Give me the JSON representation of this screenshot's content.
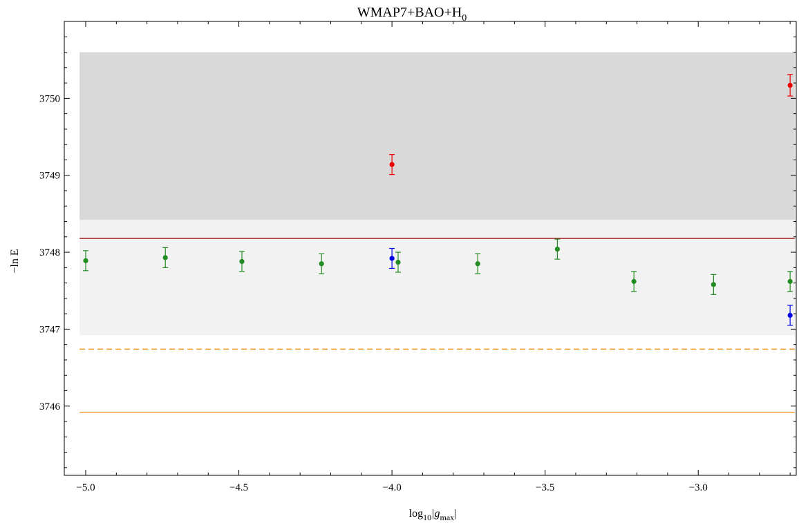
{
  "chart_data": {
    "type": "scatter",
    "title": "WMAP7+BAO+H",
    "title_subscript": "0",
    "xlabel_parts": {
      "main": "log",
      "base": "10",
      "mid": "|g",
      "sub": "max",
      "end": "|"
    },
    "ylabel": "−ln E",
    "xlim": [
      -5.07,
      -2.68
    ],
    "ylim": [
      3745.1,
      3751.0
    ],
    "xticks": [
      {
        "value": -5.0,
        "label": "−5.0"
      },
      {
        "value": -4.5,
        "label": "−4.5"
      },
      {
        "value": -4.0,
        "label": "−4.0"
      },
      {
        "value": -3.5,
        "label": "−3.5"
      },
      {
        "value": -3.0,
        "label": "−3.0"
      }
    ],
    "yticks": [
      {
        "value": 3746,
        "label": "3746"
      },
      {
        "value": 3747,
        "label": "3747"
      },
      {
        "value": 3748,
        "label": "3748"
      },
      {
        "value": 3749,
        "label": "3749"
      },
      {
        "value": 3750,
        "label": "3750"
      }
    ],
    "grid": false,
    "bands": [
      {
        "y": [
          3748.42,
          3750.6
        ],
        "color": "#d9d9d9"
      },
      {
        "y": [
          3746.92,
          3748.42
        ],
        "color": "#f2f2f2"
      }
    ],
    "lines": [
      {
        "y": 3748.18,
        "color": "#a01010",
        "dashed": false
      },
      {
        "y": 3746.74,
        "color": "#f0961e",
        "dashed": true
      },
      {
        "y": 3745.92,
        "color": "#f0961e",
        "dashed": false
      }
    ],
    "series": [
      {
        "color": "#228B22",
        "points": [
          {
            "x": -5.0,
            "y": 3747.89,
            "err": 0.13
          },
          {
            "x": -4.74,
            "y": 3747.93,
            "err": 0.13
          },
          {
            "x": -4.49,
            "y": 3747.88,
            "err": 0.13
          },
          {
            "x": -4.23,
            "y": 3747.85,
            "err": 0.13
          },
          {
            "x": -3.98,
            "y": 3747.87,
            "err": 0.13
          },
          {
            "x": -3.72,
            "y": 3747.85,
            "err": 0.13
          },
          {
            "x": -3.46,
            "y": 3748.04,
            "err": 0.13
          },
          {
            "x": -3.21,
            "y": 3747.62,
            "err": 0.13
          },
          {
            "x": -2.95,
            "y": 3747.58,
            "err": 0.13
          },
          {
            "x": -2.7,
            "y": 3747.62,
            "err": 0.13
          }
        ]
      },
      {
        "color": "#0000e6",
        "points": [
          {
            "x": -4.0,
            "y": 3747.92,
            "err": 0.13
          },
          {
            "x": -2.7,
            "y": 3747.18,
            "err": 0.13
          }
        ]
      },
      {
        "color": "#ee0000",
        "points": [
          {
            "x": -4.0,
            "y": 3749.14,
            "err": 0.13
          },
          {
            "x": -2.7,
            "y": 3750.17,
            "err": 0.14
          }
        ]
      }
    ]
  }
}
